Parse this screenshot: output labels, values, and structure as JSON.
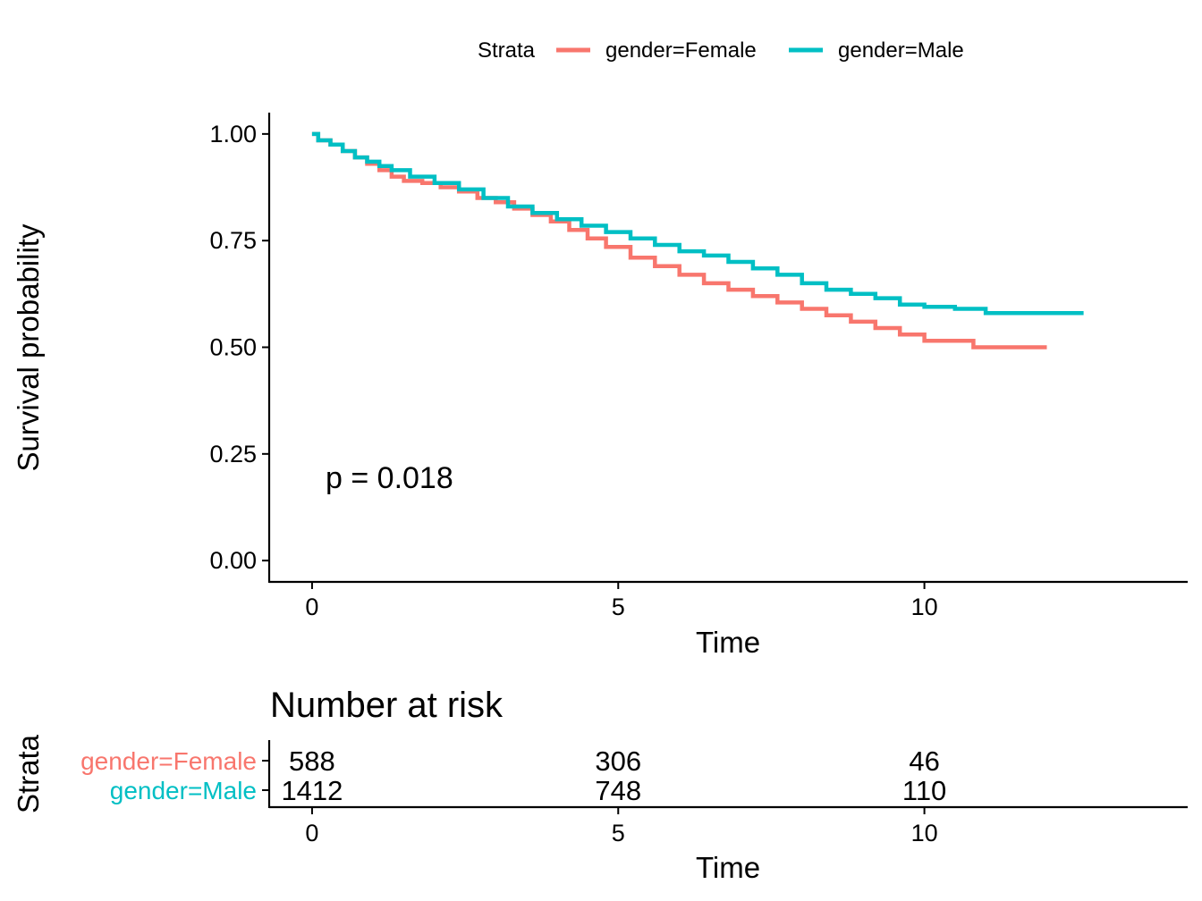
{
  "chart_data": [
    {
      "type": "line",
      "subtype": "step",
      "title": "",
      "xlabel": "Time",
      "ylabel": "Survival probability",
      "xlim": [
        -0.7,
        14.3
      ],
      "ylim": [
        -0.05,
        1.05
      ],
      "x_ticks": [
        0,
        5,
        10
      ],
      "y_ticks": [
        0.0,
        0.25,
        0.5,
        0.75,
        1.0
      ],
      "y_tick_labels": [
        "0.00",
        "0.25",
        "0.50",
        "0.75",
        "1.00"
      ],
      "grid": false,
      "legend": {
        "title": "Strata",
        "placement": "top",
        "entries": [
          "gender=Female",
          "gender=Male"
        ]
      },
      "annotation": "p = 0.018",
      "series": [
        {
          "name": "gender=Female",
          "color": "#F8766D",
          "x": [
            0,
            0.1,
            0.3,
            0.5,
            0.7,
            0.9,
            1.1,
            1.3,
            1.5,
            1.8,
            2.1,
            2.4,
            2.7,
            3.0,
            3.3,
            3.6,
            3.9,
            4.2,
            4.5,
            4.8,
            5.2,
            5.6,
            6.0,
            6.4,
            6.8,
            7.2,
            7.6,
            8.0,
            8.4,
            8.8,
            9.2,
            9.6,
            10.0,
            10.5,
            10.8,
            11.3,
            12.0
          ],
          "y": [
            1.0,
            0.985,
            0.975,
            0.96,
            0.945,
            0.93,
            0.915,
            0.9,
            0.89,
            0.885,
            0.875,
            0.865,
            0.85,
            0.84,
            0.825,
            0.81,
            0.795,
            0.775,
            0.755,
            0.735,
            0.71,
            0.69,
            0.67,
            0.65,
            0.635,
            0.62,
            0.605,
            0.59,
            0.575,
            0.56,
            0.545,
            0.53,
            0.515,
            0.515,
            0.5,
            0.5,
            0.5
          ]
        },
        {
          "name": "gender=Male",
          "color": "#00BFC4",
          "x": [
            0,
            0.1,
            0.3,
            0.5,
            0.7,
            0.9,
            1.1,
            1.3,
            1.6,
            2.0,
            2.4,
            2.8,
            3.2,
            3.6,
            4.0,
            4.4,
            4.8,
            5.2,
            5.6,
            6.0,
            6.4,
            6.8,
            7.2,
            7.6,
            8.0,
            8.4,
            8.8,
            9.2,
            9.6,
            10.0,
            10.5,
            11.0,
            11.5,
            12.0,
            12.6
          ],
          "y": [
            1.0,
            0.985,
            0.975,
            0.96,
            0.945,
            0.935,
            0.925,
            0.915,
            0.9,
            0.885,
            0.87,
            0.85,
            0.83,
            0.815,
            0.8,
            0.785,
            0.77,
            0.755,
            0.74,
            0.725,
            0.715,
            0.7,
            0.685,
            0.67,
            0.65,
            0.635,
            0.625,
            0.615,
            0.6,
            0.595,
            0.59,
            0.58,
            0.58,
            0.58,
            0.58
          ]
        }
      ]
    },
    {
      "type": "table",
      "title": "Number at risk",
      "xlabel": "Time",
      "ylabel": "Strata",
      "xlim": [
        -0.7,
        14.3
      ],
      "x_ticks": [
        0,
        5,
        10
      ],
      "rows": [
        {
          "name": "gender=Female",
          "color": "#F8766D",
          "times": [
            0,
            5,
            10
          ],
          "values": [
            "588",
            "306",
            "46"
          ]
        },
        {
          "name": "gender=Male",
          "color": "#00BFC4",
          "times": [
            0,
            5,
            10
          ],
          "values": [
            "1412",
            "748",
            "110"
          ]
        }
      ]
    }
  ]
}
